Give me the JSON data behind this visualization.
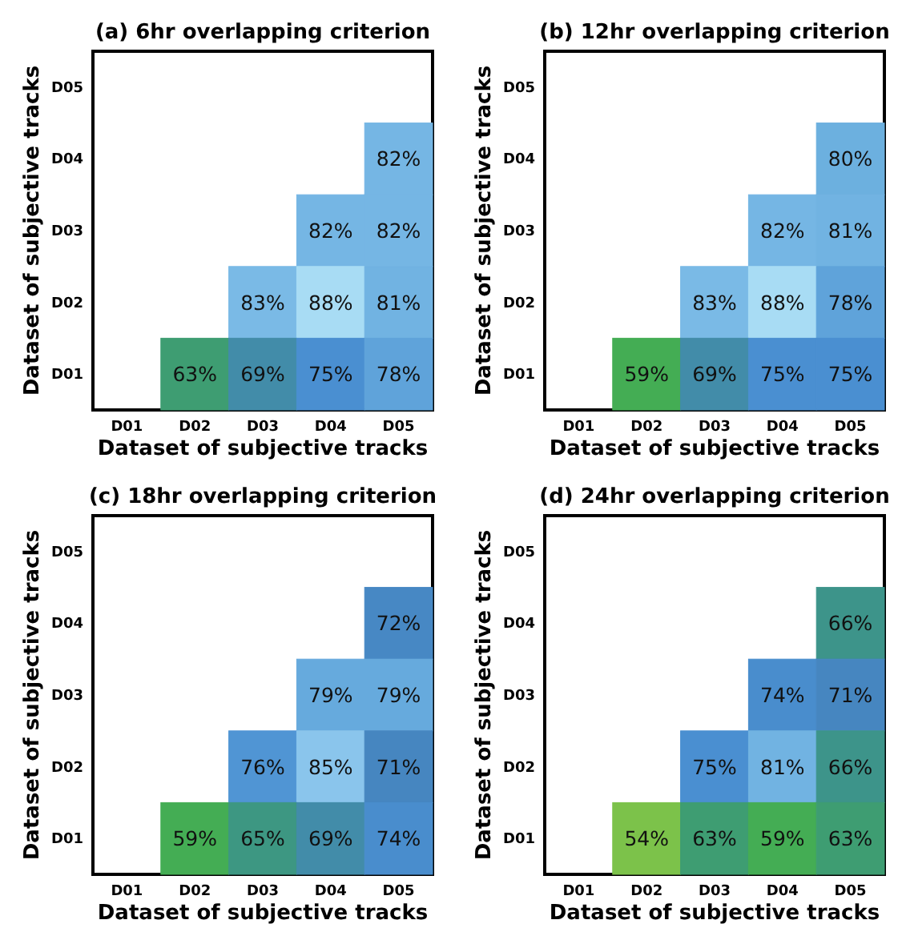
{
  "chart_data": [
    {
      "type": "heatmap",
      "title": "(a) 6hr overlapping criterion",
      "xlabel": "Dataset of subjective tracks",
      "ylabel": "Dataset of subjective tracks",
      "categories": [
        "D01",
        "D02",
        "D03",
        "D04",
        "D05"
      ],
      "y_categories": [
        "D05",
        "D04",
        "D03",
        "D02",
        "D01"
      ],
      "cells": [
        [
          null,
          null,
          null,
          null,
          null
        ],
        [
          null,
          null,
          null,
          null,
          82
        ],
        [
          null,
          null,
          null,
          82,
          82
        ],
        [
          null,
          null,
          83,
          88,
          81
        ],
        [
          null,
          63,
          69,
          75,
          78
        ]
      ],
      "cell_labels": [
        [
          null,
          null,
          null,
          null,
          null
        ],
        [
          null,
          null,
          null,
          null,
          "82%"
        ],
        [
          null,
          null,
          null,
          "82%",
          "82%"
        ],
        [
          null,
          null,
          "83%",
          "88%",
          "81%"
        ],
        [
          null,
          "63%",
          "69%",
          "75%",
          "78%"
        ]
      ]
    },
    {
      "type": "heatmap",
      "title": "(b) 12hr overlapping criterion",
      "xlabel": "Dataset of subjective tracks",
      "ylabel": "Dataset of subjective tracks",
      "categories": [
        "D01",
        "D02",
        "D03",
        "D04",
        "D05"
      ],
      "y_categories": [
        "D05",
        "D04",
        "D03",
        "D02",
        "D01"
      ],
      "cells": [
        [
          null,
          null,
          null,
          null,
          null
        ],
        [
          null,
          null,
          null,
          null,
          80
        ],
        [
          null,
          null,
          null,
          82,
          81
        ],
        [
          null,
          null,
          83,
          88,
          78
        ],
        [
          null,
          59,
          69,
          75,
          75
        ]
      ],
      "cell_labels": [
        [
          null,
          null,
          null,
          null,
          null
        ],
        [
          null,
          null,
          null,
          null,
          "80%"
        ],
        [
          null,
          null,
          null,
          "82%",
          "81%"
        ],
        [
          null,
          null,
          "83%",
          "88%",
          "78%"
        ],
        [
          null,
          "59%",
          "69%",
          "75%",
          "75%"
        ]
      ]
    },
    {
      "type": "heatmap",
      "title": "(c) 18hr overlapping criterion",
      "xlabel": "Dataset of subjective tracks",
      "ylabel": "Dataset of subjective tracks",
      "categories": [
        "D01",
        "D02",
        "D03",
        "D04",
        "D05"
      ],
      "y_categories": [
        "D05",
        "D04",
        "D03",
        "D02",
        "D01"
      ],
      "cells": [
        [
          null,
          null,
          null,
          null,
          null
        ],
        [
          null,
          null,
          null,
          null,
          72
        ],
        [
          null,
          null,
          null,
          79,
          79
        ],
        [
          null,
          null,
          76,
          85,
          71
        ],
        [
          null,
          59,
          65,
          69,
          74
        ]
      ],
      "cell_labels": [
        [
          null,
          null,
          null,
          null,
          null
        ],
        [
          null,
          null,
          null,
          null,
          "72%"
        ],
        [
          null,
          null,
          null,
          "79%",
          "79%"
        ],
        [
          null,
          null,
          "76%",
          "85%",
          "71%"
        ],
        [
          null,
          "59%",
          "65%",
          "69%",
          "74%"
        ]
      ]
    },
    {
      "type": "heatmap",
      "title": "(d) 24hr overlapping criterion",
      "xlabel": "Dataset of subjective tracks",
      "ylabel": "Dataset of subjective tracks",
      "categories": [
        "D01",
        "D02",
        "D03",
        "D04",
        "D05"
      ],
      "y_categories": [
        "D05",
        "D04",
        "D03",
        "D02",
        "D01"
      ],
      "cells": [
        [
          null,
          null,
          null,
          null,
          null
        ],
        [
          null,
          null,
          null,
          null,
          66
        ],
        [
          null,
          null,
          null,
          74,
          71
        ],
        [
          null,
          null,
          75,
          81,
          66
        ],
        [
          null,
          54,
          63,
          59,
          63
        ]
      ],
      "cell_labels": [
        [
          null,
          null,
          null,
          null,
          null
        ],
        [
          null,
          null,
          null,
          null,
          "66%"
        ],
        [
          null,
          null,
          null,
          "74%",
          "71%"
        ],
        [
          null,
          null,
          "75%",
          "81%",
          "66%"
        ],
        [
          null,
          "54%",
          "63%",
          "59%",
          "63%"
        ]
      ]
    }
  ]
}
